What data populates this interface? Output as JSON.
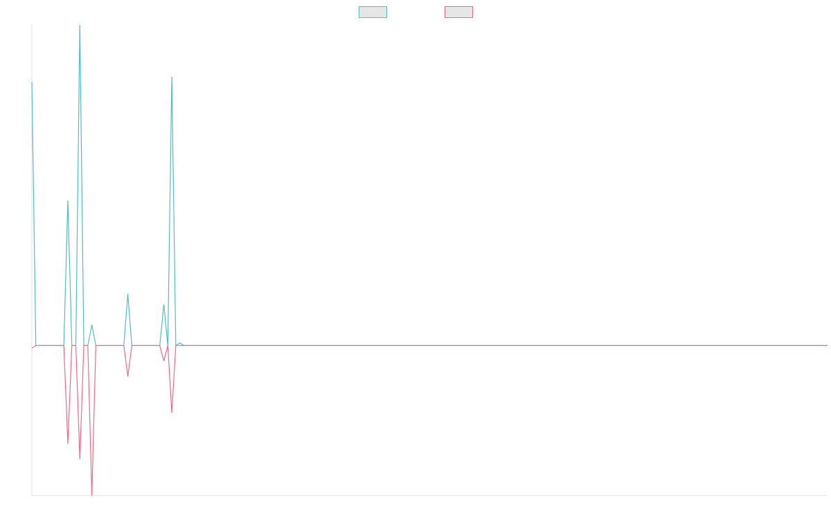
{
  "chart_data": {
    "type": "line",
    "title": "",
    "xlabel": "",
    "ylabel": "",
    "legend_position": "top-center",
    "grid": false,
    "x_count": 200,
    "ylim": [
      -2.9,
      6.2
    ],
    "series": [
      {
        "name": "",
        "color": "#4bc0c0",
        "points": [
          [
            0,
            5.1
          ],
          [
            1,
            0.0
          ],
          [
            2,
            0.0
          ],
          [
            8,
            0.0
          ],
          [
            9,
            2.8
          ],
          [
            10,
            0.0
          ],
          [
            11,
            0.0
          ],
          [
            12,
            6.2
          ],
          [
            13,
            0.0
          ],
          [
            14,
            0.0
          ],
          [
            15,
            0.4
          ],
          [
            16,
            0.0
          ],
          [
            23,
            0.0
          ],
          [
            24,
            1.0
          ],
          [
            25,
            0.0
          ],
          [
            32,
            0.0
          ],
          [
            33,
            0.8
          ],
          [
            34,
            0.0
          ],
          [
            35,
            5.2
          ],
          [
            36,
            0.0
          ],
          [
            37,
            0.05
          ],
          [
            38,
            0.0
          ],
          [
            199,
            0.0
          ]
        ]
      },
      {
        "name": "",
        "color": "#ff6384",
        "points": [
          [
            0,
            -0.05
          ],
          [
            1,
            0.0
          ],
          [
            2,
            0.0
          ],
          [
            8,
            0.0
          ],
          [
            9,
            -1.9
          ],
          [
            10,
            0.0
          ],
          [
            11,
            0.0
          ],
          [
            12,
            -2.2
          ],
          [
            13,
            0.0
          ],
          [
            14,
            0.0
          ],
          [
            15,
            -2.9
          ],
          [
            16,
            0.0
          ],
          [
            23,
            0.0
          ],
          [
            24,
            -0.6
          ],
          [
            25,
            0.0
          ],
          [
            32,
            0.0
          ],
          [
            33,
            -0.3
          ],
          [
            34,
            0.0
          ],
          [
            35,
            -1.3
          ],
          [
            36,
            0.0
          ],
          [
            37,
            0.0
          ],
          [
            199,
            0.0
          ]
        ]
      }
    ]
  }
}
